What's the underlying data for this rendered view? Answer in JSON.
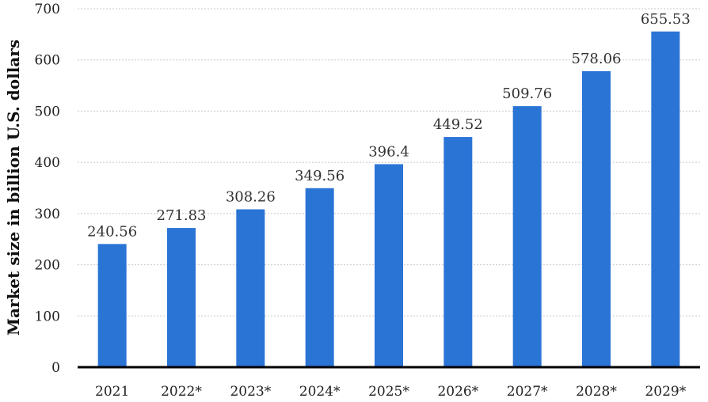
{
  "chart_data": {
    "type": "bar",
    "categories": [
      "2021",
      "2022*",
      "2023*",
      "2024*",
      "2025*",
      "2026*",
      "2027*",
      "2028*",
      "2029*"
    ],
    "values": [
      240.56,
      271.83,
      308.26,
      349.56,
      396.4,
      449.52,
      509.76,
      578.06,
      655.53
    ],
    "data_labels": [
      "240.56",
      "271.83",
      "308.26",
      "349.56",
      "396.4",
      "449.52",
      "509.76",
      "578.06",
      "655.53"
    ],
    "title": "",
    "xlabel": "",
    "ylabel": "Market size in billion U.S. dollars",
    "ylim": [
      0,
      700
    ],
    "yticks": [
      0,
      100,
      200,
      300,
      400,
      500,
      600,
      700
    ],
    "grid": true,
    "bar_color": "#2a74d6"
  }
}
